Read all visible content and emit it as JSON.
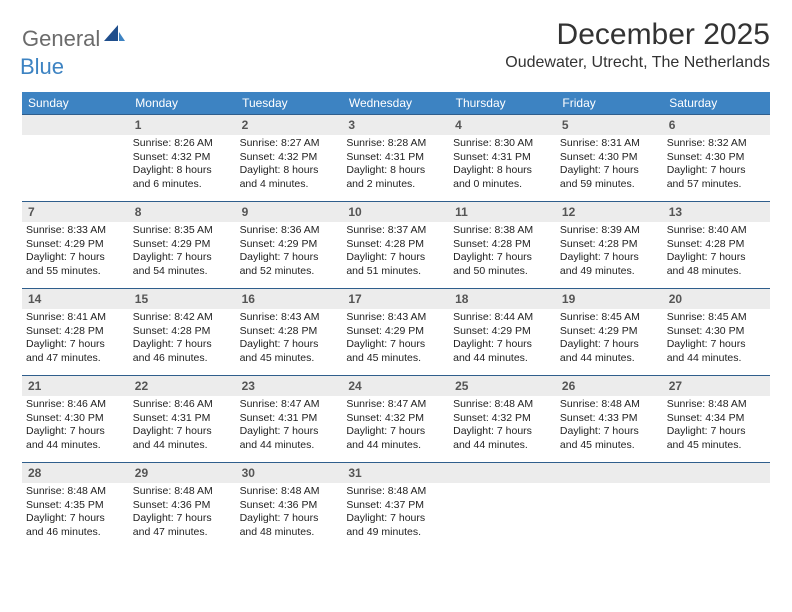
{
  "brand": {
    "word1": "General",
    "word2": "Blue"
  },
  "title": "December 2025",
  "location": "Oudewater, Utrecht, The Netherlands",
  "colors": {
    "header_bg": "#3d83c2",
    "header_border": "#2f5e8c",
    "daynum_bg": "#ececec",
    "text": "#222222",
    "brand_gray": "#6b6b6b",
    "brand_blue": "#3d83c2"
  },
  "days_of_week": [
    "Sunday",
    "Monday",
    "Tuesday",
    "Wednesday",
    "Thursday",
    "Friday",
    "Saturday"
  ],
  "weeks": [
    [
      null,
      {
        "n": "1",
        "sr": "Sunrise: 8:26 AM",
        "ss": "Sunset: 4:32 PM",
        "d1": "Daylight: 8 hours",
        "d2": "and 6 minutes."
      },
      {
        "n": "2",
        "sr": "Sunrise: 8:27 AM",
        "ss": "Sunset: 4:32 PM",
        "d1": "Daylight: 8 hours",
        "d2": "and 4 minutes."
      },
      {
        "n": "3",
        "sr": "Sunrise: 8:28 AM",
        "ss": "Sunset: 4:31 PM",
        "d1": "Daylight: 8 hours",
        "d2": "and 2 minutes."
      },
      {
        "n": "4",
        "sr": "Sunrise: 8:30 AM",
        "ss": "Sunset: 4:31 PM",
        "d1": "Daylight: 8 hours",
        "d2": "and 0 minutes."
      },
      {
        "n": "5",
        "sr": "Sunrise: 8:31 AM",
        "ss": "Sunset: 4:30 PM",
        "d1": "Daylight: 7 hours",
        "d2": "and 59 minutes."
      },
      {
        "n": "6",
        "sr": "Sunrise: 8:32 AM",
        "ss": "Sunset: 4:30 PM",
        "d1": "Daylight: 7 hours",
        "d2": "and 57 minutes."
      }
    ],
    [
      {
        "n": "7",
        "sr": "Sunrise: 8:33 AM",
        "ss": "Sunset: 4:29 PM",
        "d1": "Daylight: 7 hours",
        "d2": "and 55 minutes."
      },
      {
        "n": "8",
        "sr": "Sunrise: 8:35 AM",
        "ss": "Sunset: 4:29 PM",
        "d1": "Daylight: 7 hours",
        "d2": "and 54 minutes."
      },
      {
        "n": "9",
        "sr": "Sunrise: 8:36 AM",
        "ss": "Sunset: 4:29 PM",
        "d1": "Daylight: 7 hours",
        "d2": "and 52 minutes."
      },
      {
        "n": "10",
        "sr": "Sunrise: 8:37 AM",
        "ss": "Sunset: 4:28 PM",
        "d1": "Daylight: 7 hours",
        "d2": "and 51 minutes."
      },
      {
        "n": "11",
        "sr": "Sunrise: 8:38 AM",
        "ss": "Sunset: 4:28 PM",
        "d1": "Daylight: 7 hours",
        "d2": "and 50 minutes."
      },
      {
        "n": "12",
        "sr": "Sunrise: 8:39 AM",
        "ss": "Sunset: 4:28 PM",
        "d1": "Daylight: 7 hours",
        "d2": "and 49 minutes."
      },
      {
        "n": "13",
        "sr": "Sunrise: 8:40 AM",
        "ss": "Sunset: 4:28 PM",
        "d1": "Daylight: 7 hours",
        "d2": "and 48 minutes."
      }
    ],
    [
      {
        "n": "14",
        "sr": "Sunrise: 8:41 AM",
        "ss": "Sunset: 4:28 PM",
        "d1": "Daylight: 7 hours",
        "d2": "and 47 minutes."
      },
      {
        "n": "15",
        "sr": "Sunrise: 8:42 AM",
        "ss": "Sunset: 4:28 PM",
        "d1": "Daylight: 7 hours",
        "d2": "and 46 minutes."
      },
      {
        "n": "16",
        "sr": "Sunrise: 8:43 AM",
        "ss": "Sunset: 4:28 PM",
        "d1": "Daylight: 7 hours",
        "d2": "and 45 minutes."
      },
      {
        "n": "17",
        "sr": "Sunrise: 8:43 AM",
        "ss": "Sunset: 4:29 PM",
        "d1": "Daylight: 7 hours",
        "d2": "and 45 minutes."
      },
      {
        "n": "18",
        "sr": "Sunrise: 8:44 AM",
        "ss": "Sunset: 4:29 PM",
        "d1": "Daylight: 7 hours",
        "d2": "and 44 minutes."
      },
      {
        "n": "19",
        "sr": "Sunrise: 8:45 AM",
        "ss": "Sunset: 4:29 PM",
        "d1": "Daylight: 7 hours",
        "d2": "and 44 minutes."
      },
      {
        "n": "20",
        "sr": "Sunrise: 8:45 AM",
        "ss": "Sunset: 4:30 PM",
        "d1": "Daylight: 7 hours",
        "d2": "and 44 minutes."
      }
    ],
    [
      {
        "n": "21",
        "sr": "Sunrise: 8:46 AM",
        "ss": "Sunset: 4:30 PM",
        "d1": "Daylight: 7 hours",
        "d2": "and 44 minutes."
      },
      {
        "n": "22",
        "sr": "Sunrise: 8:46 AM",
        "ss": "Sunset: 4:31 PM",
        "d1": "Daylight: 7 hours",
        "d2": "and 44 minutes."
      },
      {
        "n": "23",
        "sr": "Sunrise: 8:47 AM",
        "ss": "Sunset: 4:31 PM",
        "d1": "Daylight: 7 hours",
        "d2": "and 44 minutes."
      },
      {
        "n": "24",
        "sr": "Sunrise: 8:47 AM",
        "ss": "Sunset: 4:32 PM",
        "d1": "Daylight: 7 hours",
        "d2": "and 44 minutes."
      },
      {
        "n": "25",
        "sr": "Sunrise: 8:48 AM",
        "ss": "Sunset: 4:32 PM",
        "d1": "Daylight: 7 hours",
        "d2": "and 44 minutes."
      },
      {
        "n": "26",
        "sr": "Sunrise: 8:48 AM",
        "ss": "Sunset: 4:33 PM",
        "d1": "Daylight: 7 hours",
        "d2": "and 45 minutes."
      },
      {
        "n": "27",
        "sr": "Sunrise: 8:48 AM",
        "ss": "Sunset: 4:34 PM",
        "d1": "Daylight: 7 hours",
        "d2": "and 45 minutes."
      }
    ],
    [
      {
        "n": "28",
        "sr": "Sunrise: 8:48 AM",
        "ss": "Sunset: 4:35 PM",
        "d1": "Daylight: 7 hours",
        "d2": "and 46 minutes."
      },
      {
        "n": "29",
        "sr": "Sunrise: 8:48 AM",
        "ss": "Sunset: 4:36 PM",
        "d1": "Daylight: 7 hours",
        "d2": "and 47 minutes."
      },
      {
        "n": "30",
        "sr": "Sunrise: 8:48 AM",
        "ss": "Sunset: 4:36 PM",
        "d1": "Daylight: 7 hours",
        "d2": "and 48 minutes."
      },
      {
        "n": "31",
        "sr": "Sunrise: 8:48 AM",
        "ss": "Sunset: 4:37 PM",
        "d1": "Daylight: 7 hours",
        "d2": "and 49 minutes."
      },
      null,
      null,
      null
    ]
  ]
}
